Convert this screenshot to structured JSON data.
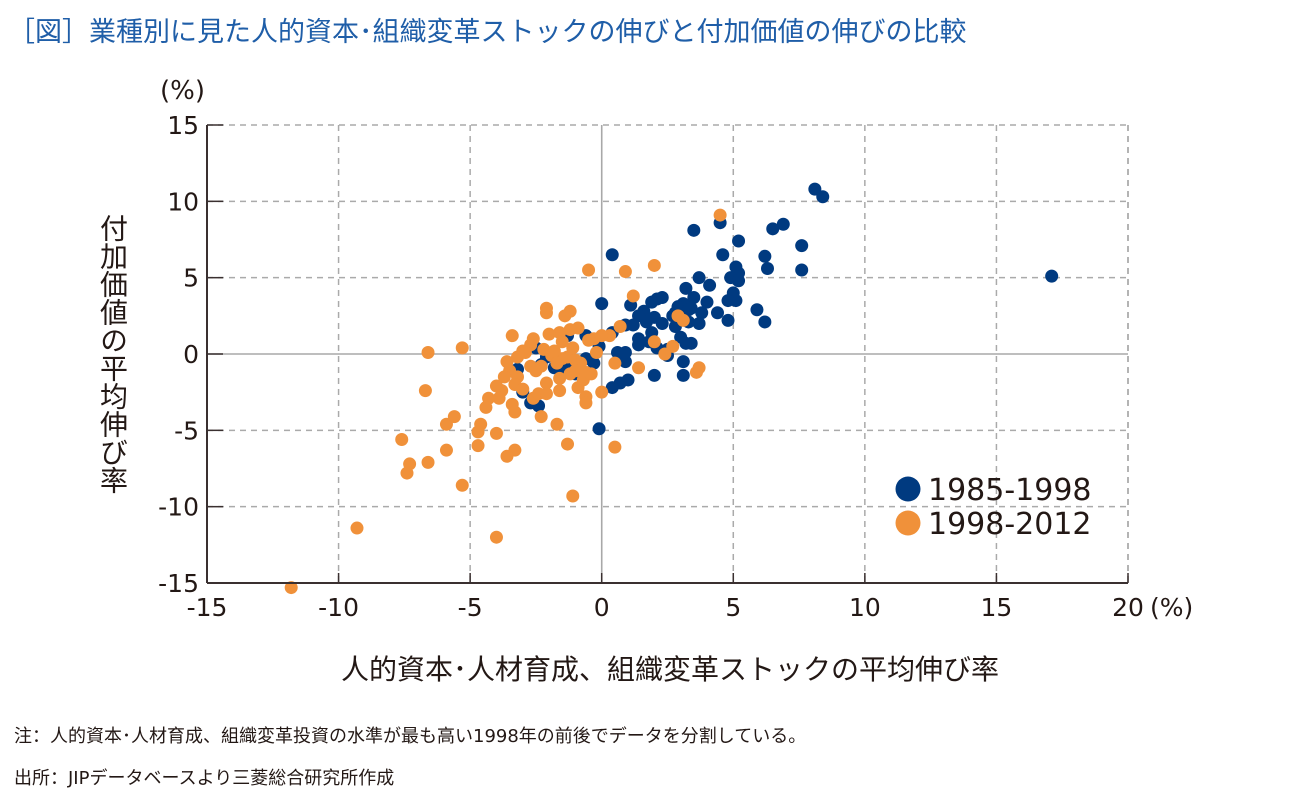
{
  "title": "［図］業種別に見た人的資本･組織変革ストックの伸びと付加価値の伸びの比較",
  "note": "注：人的資本･人材育成、組織変革投資の水準が最も高い1998年の前後でデータを分割している。",
  "source": "出所：JIPデータベースより三菱総合研究所作成",
  "colors": {
    "series1": "#003a80",
    "series2": "#f0913a",
    "grid": "#aaaaaa",
    "axis": "#3a3030",
    "title": "#1f5ea8"
  },
  "chart_data": {
    "type": "scatter",
    "title": "［図］業種別に見た人的資本･組織変革ストックの伸びと付加価値の伸びの比較",
    "xlabel": "人的資本･人材育成、組織変革ストックの平均伸び率",
    "ylabel": "付加価値の平均伸び率",
    "x_unit": "(%)",
    "y_unit": "(%)",
    "xlim": [
      -15,
      20
    ],
    "ylim": [
      -15,
      15
    ],
    "x_ticks": [
      "-15",
      "-10",
      "-5",
      "0",
      "5",
      "10",
      "15",
      "20"
    ],
    "y_ticks": [
      "15",
      "10",
      "5",
      "0",
      "-5",
      "-10",
      "-15"
    ],
    "grid": true,
    "legend_position": "bottom-right",
    "series": [
      {
        "name": "1985-1998",
        "color": "#003a80",
        "points": [
          [
            8.1,
            10.8
          ],
          [
            8.4,
            10.3
          ],
          [
            17.1,
            5.1
          ],
          [
            6.9,
            8.5
          ],
          [
            6.5,
            8.2
          ],
          [
            7.6,
            7.1
          ],
          [
            7.6,
            5.5
          ],
          [
            6.2,
            6.4
          ],
          [
            6.3,
            5.6
          ],
          [
            5.2,
            7.4
          ],
          [
            4.5,
            8.6
          ],
          [
            3.5,
            8.1
          ],
          [
            4.6,
            6.5
          ],
          [
            5.1,
            5.7
          ],
          [
            5.2,
            5.3
          ],
          [
            4.9,
            5.0
          ],
          [
            5.2,
            4.8
          ],
          [
            5.0,
            4.0
          ],
          [
            5.1,
            3.5
          ],
          [
            4.8,
            3.5
          ],
          [
            5.9,
            2.9
          ],
          [
            6.2,
            2.1
          ],
          [
            4.8,
            2.2
          ],
          [
            3.7,
            5.0
          ],
          [
            4.1,
            4.5
          ],
          [
            3.2,
            4.3
          ],
          [
            3.5,
            3.7
          ],
          [
            4.0,
            3.4
          ],
          [
            3.1,
            3.3
          ],
          [
            3.4,
            3.0
          ],
          [
            3.8,
            2.7
          ],
          [
            2.9,
            3.1
          ],
          [
            2.7,
            2.5
          ],
          [
            3.3,
            2.1
          ],
          [
            3.7,
            2.0
          ],
          [
            2.1,
            3.6
          ],
          [
            2.3,
            3.7
          ],
          [
            1.9,
            3.4
          ],
          [
            1.6,
            2.8
          ],
          [
            2.0,
            2.4
          ],
          [
            2.3,
            2.0
          ],
          [
            1.7,
            2.1
          ],
          [
            1.4,
            2.5
          ],
          [
            1.2,
            1.9
          ],
          [
            1.9,
            1.4
          ],
          [
            1.4,
            1.0
          ],
          [
            1.8,
            0.8
          ],
          [
            1.4,
            0.6
          ],
          [
            2.1,
            0.4
          ],
          [
            2.5,
            0.3
          ],
          [
            3.0,
            1.1
          ],
          [
            2.8,
            1.8
          ],
          [
            3.2,
            0.7
          ],
          [
            3.4,
            0.7
          ],
          [
            2.5,
            -0.1
          ],
          [
            3.1,
            -0.5
          ],
          [
            3.1,
            -1.4
          ],
          [
            2.0,
            -1.4
          ],
          [
            1.0,
            -1.7
          ],
          [
            0.7,
            -1.9
          ],
          [
            0.4,
            -2.2
          ],
          [
            0.9,
            -0.5
          ],
          [
            0.6,
            0.1
          ],
          [
            0.9,
            0.1
          ],
          [
            0.4,
            1.4
          ],
          [
            0.9,
            1.9
          ],
          [
            1.1,
            3.2
          ],
          [
            0.4,
            6.5
          ],
          [
            0.0,
            3.3
          ],
          [
            -0.1,
            0.5
          ],
          [
            -0.6,
            1.2
          ],
          [
            -0.6,
            -0.3
          ],
          [
            -0.3,
            -0.6
          ],
          [
            -1.0,
            -1.3
          ],
          [
            -1.5,
            -1.0
          ],
          [
            -2.3,
            -0.7
          ],
          [
            -2.1,
            -0.2
          ],
          [
            -1.3,
            1.2
          ],
          [
            -2.5,
            0.4
          ],
          [
            -2.7,
            -3.2
          ],
          [
            -2.4,
            -3.4
          ],
          [
            -3.2,
            -1.0
          ],
          [
            -3.0,
            -2.5
          ],
          [
            -0.1,
            -4.9
          ],
          [
            -1.2,
            -0.5
          ],
          [
            -1.8,
            -0.9
          ],
          [
            -0.9,
            -1.0
          ],
          [
            2.8,
            2.7
          ],
          [
            3.3,
            2.9
          ],
          [
            4.4,
            2.7
          ]
        ]
      },
      {
        "name": "1998-2012",
        "color": "#f0913a",
        "points": [
          [
            4.5,
            9.1
          ],
          [
            2.0,
            5.8
          ],
          [
            0.9,
            5.4
          ],
          [
            -0.5,
            5.5
          ],
          [
            1.2,
            3.8
          ],
          [
            0.7,
            1.8
          ],
          [
            0.3,
            1.2
          ],
          [
            0.0,
            1.2
          ],
          [
            -0.3,
            1.0
          ],
          [
            -0.5,
            0.9
          ],
          [
            -2.1,
            3.0
          ],
          [
            -2.1,
            2.7
          ],
          [
            -1.4,
            2.5
          ],
          [
            -1.2,
            2.8
          ],
          [
            -0.9,
            1.7
          ],
          [
            -1.2,
            1.6
          ],
          [
            -1.6,
            1.4
          ],
          [
            -2.0,
            1.3
          ],
          [
            -2.6,
            1.0
          ],
          [
            -3.4,
            1.2
          ],
          [
            -2.7,
            0.6
          ],
          [
            -3.0,
            0.2
          ],
          [
            -3.2,
            -0.2
          ],
          [
            -2.2,
            0.3
          ],
          [
            -1.9,
            -0.1
          ],
          [
            -1.5,
            -0.3
          ],
          [
            -1.3,
            -0.2
          ],
          [
            -1.0,
            -0.4
          ],
          [
            -0.8,
            -0.6
          ],
          [
            -1.7,
            -0.6
          ],
          [
            -2.3,
            -0.8
          ],
          [
            -2.7,
            -0.8
          ],
          [
            -3.6,
            -0.5
          ],
          [
            -3.5,
            -1.1
          ],
          [
            -3.2,
            -1.5
          ],
          [
            -3.3,
            -2.0
          ],
          [
            -3.0,
            -2.3
          ],
          [
            -2.6,
            -2.9
          ],
          [
            -2.4,
            -2.6
          ],
          [
            -2.1,
            -1.9
          ],
          [
            -1.6,
            -1.6
          ],
          [
            -1.2,
            -1.3
          ],
          [
            -1.0,
            -1.1
          ],
          [
            -0.6,
            -1.2
          ],
          [
            -0.7,
            -1.7
          ],
          [
            -1.6,
            -2.4
          ],
          [
            -0.6,
            -2.8
          ],
          [
            -0.6,
            -3.2
          ],
          [
            -2.1,
            -2.6
          ],
          [
            -3.8,
            -2.4
          ],
          [
            -3.9,
            -2.9
          ],
          [
            -3.4,
            -3.3
          ],
          [
            -3.3,
            -3.8
          ],
          [
            -4.0,
            -2.1
          ],
          [
            -4.3,
            -2.9
          ],
          [
            -4.4,
            -3.5
          ],
          [
            -2.3,
            -4.1
          ],
          [
            -1.7,
            -4.6
          ],
          [
            -4.0,
            -5.2
          ],
          [
            -4.6,
            -4.6
          ],
          [
            -4.7,
            -5.1
          ],
          [
            -5.9,
            -4.6
          ],
          [
            -5.6,
            -4.1
          ],
          [
            -4.7,
            -6.0
          ],
          [
            -5.9,
            -6.3
          ],
          [
            -3.3,
            -6.3
          ],
          [
            -3.6,
            -6.7
          ],
          [
            -7.6,
            -5.6
          ],
          [
            -7.3,
            -7.2
          ],
          [
            -6.6,
            -7.1
          ],
          [
            -7.4,
            -7.8
          ],
          [
            -5.3,
            -8.6
          ],
          [
            -1.3,
            -5.9
          ],
          [
            0.5,
            -6.1
          ],
          [
            -1.1,
            -9.3
          ],
          [
            -4.0,
            -12.0
          ],
          [
            -9.3,
            -11.4
          ],
          [
            -11.8,
            -15.3
          ],
          [
            -6.6,
            0.1
          ],
          [
            -5.3,
            0.4
          ],
          [
            -6.7,
            -2.4
          ],
          [
            0.0,
            -2.5
          ],
          [
            3.6,
            -1.2
          ],
          [
            3.7,
            -0.9
          ],
          [
            2.7,
            0.5
          ],
          [
            1.4,
            -0.9
          ],
          [
            2.0,
            0.8
          ],
          [
            2.4,
            0.0
          ],
          [
            0.5,
            -0.6
          ],
          [
            2.9,
            2.5
          ],
          [
            3.1,
            2.2
          ],
          [
            -0.2,
            0.1
          ],
          [
            -0.4,
            -1.3
          ],
          [
            -1.5,
            0.8
          ],
          [
            -1.8,
            0.2
          ],
          [
            -2.5,
            -1.1
          ],
          [
            -3.7,
            -1.5
          ],
          [
            -0.9,
            -2.2
          ],
          [
            -2.9,
            0.1
          ],
          [
            -1.1,
            0.4
          ]
        ]
      }
    ]
  }
}
